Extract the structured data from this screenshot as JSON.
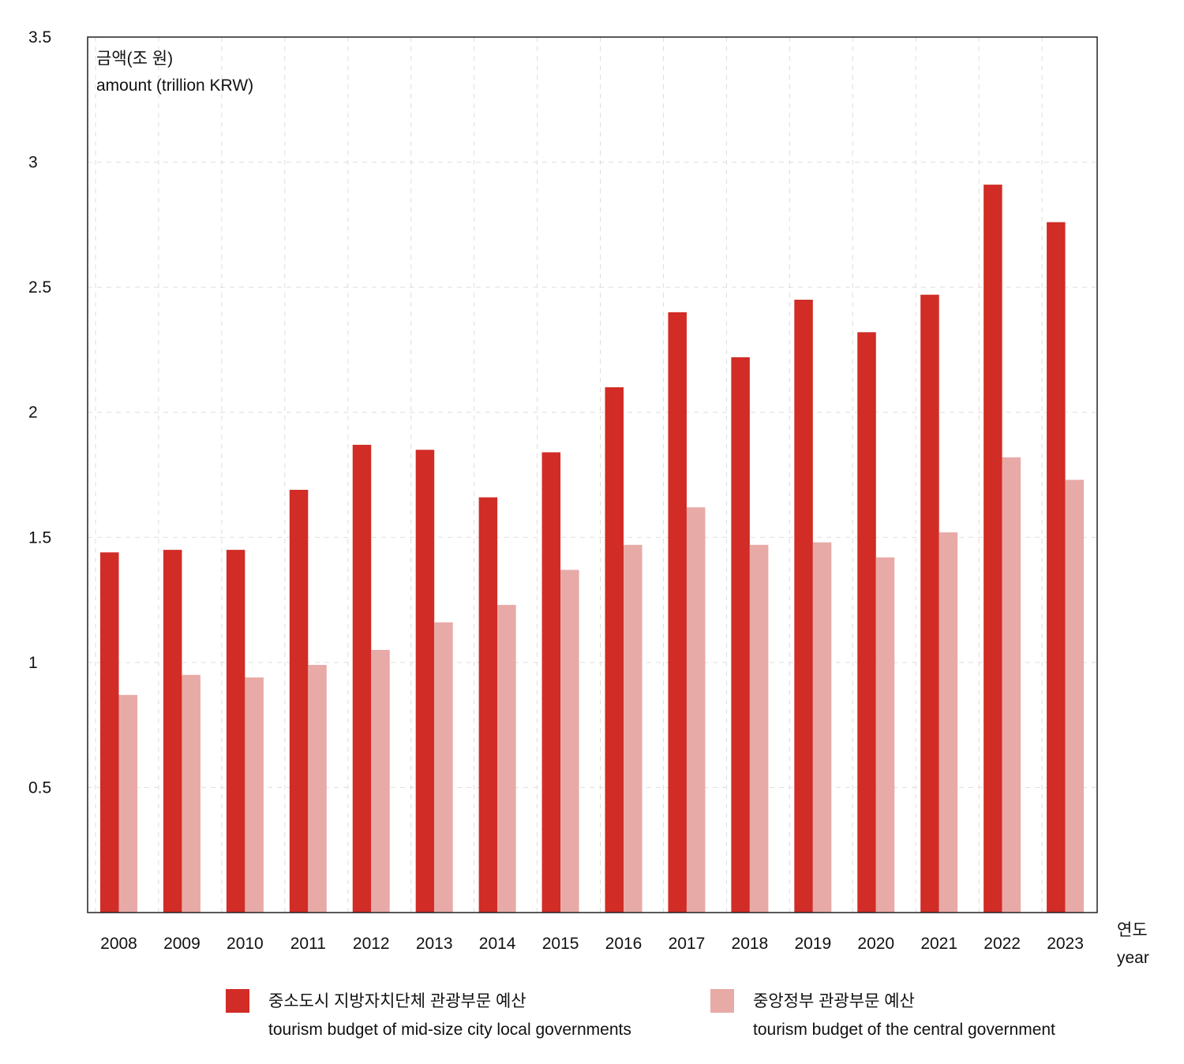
{
  "colors": {
    "local": "#d12c26",
    "central": "#e8aaa7",
    "grid": "#dddddd",
    "frame": "#222222"
  },
  "chart_data": {
    "type": "bar",
    "ylabel_ko": "금액(조 원)",
    "ylabel_en": "amount (trillion KRW)",
    "xlabel_ko": "연도",
    "xlabel_en": "year",
    "ylim": [
      0,
      3.5
    ],
    "yticks": [
      "0.5",
      "1",
      "1.5",
      "2",
      "2.5",
      "3",
      "3.5"
    ],
    "grid": true,
    "legend_position": "bottom",
    "categories": [
      "2008",
      "2009",
      "2010",
      "2011",
      "2012",
      "2013",
      "2014",
      "2015",
      "2016",
      "2017",
      "2018",
      "2019",
      "2020",
      "2021",
      "2022",
      "2023"
    ],
    "series": [
      {
        "name_ko": "중소도시 지방자치단체 관광부문 예산",
        "name_en": "tourism budget of mid-size city local governments",
        "values": [
          1.44,
          1.45,
          1.45,
          1.69,
          1.87,
          1.85,
          1.66,
          1.84,
          2.1,
          2.4,
          2.22,
          2.45,
          2.32,
          2.47,
          2.91,
          2.76
        ]
      },
      {
        "name_ko": "중앙정부 관광부문 예산",
        "name_en": "tourism budget of the central government",
        "values": [
          0.87,
          0.95,
          0.94,
          0.99,
          1.05,
          1.16,
          1.23,
          1.37,
          1.47,
          1.62,
          1.47,
          1.48,
          1.42,
          1.52,
          1.82,
          1.73
        ]
      }
    ]
  }
}
